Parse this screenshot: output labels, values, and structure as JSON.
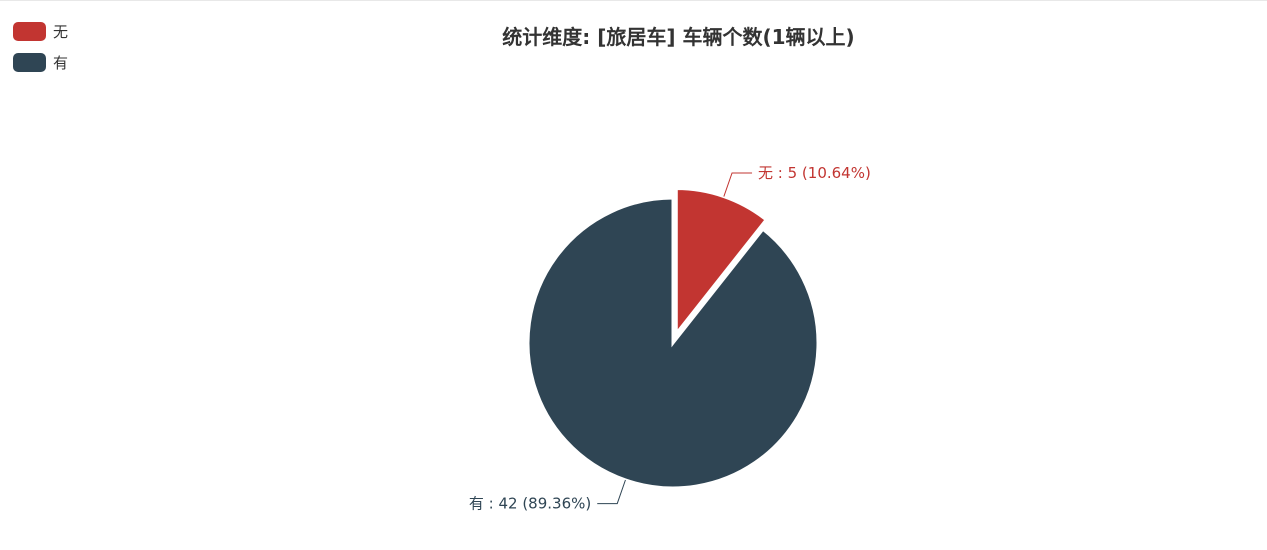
{
  "chart_data": {
    "type": "pie",
    "title": "统计维度: [旅居车] 车辆个数(1辆以上)",
    "legend_position": "top-left",
    "slices": [
      {
        "name": "无",
        "value": 5,
        "percent": "10.64%",
        "label": "无 : 5 (10.64%)",
        "color": "#c23531",
        "selected": true
      },
      {
        "name": "有",
        "value": 42,
        "percent": "89.36%",
        "label": "有 : 42 (89.36%)",
        "color": "#2f4554",
        "selected": false
      }
    ]
  }
}
